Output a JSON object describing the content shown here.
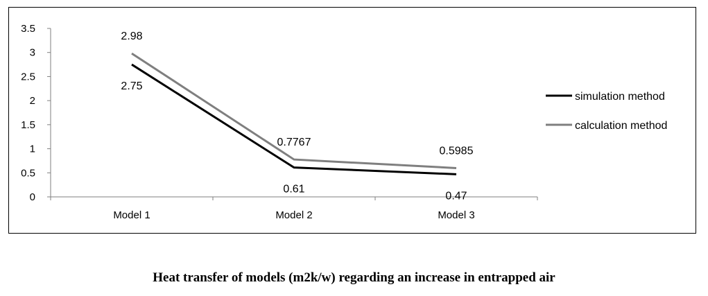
{
  "chart_data": {
    "type": "line",
    "categories": [
      "Model 1",
      "Model 2",
      "Model 3"
    ],
    "series": [
      {
        "name": "simulation method",
        "values": [
          2.75,
          0.61,
          0.47
        ],
        "labels": [
          "2.75",
          "0.61",
          "0.47"
        ],
        "color": "#000000"
      },
      {
        "name": "calculation method",
        "values": [
          2.98,
          0.7767,
          0.5985
        ],
        "labels": [
          "2.98",
          "0.7767",
          "0.5985"
        ],
        "color": "#7f7f7f"
      }
    ],
    "ylim": [
      0,
      3.5
    ],
    "yticks": [
      "0",
      "0.5",
      "1",
      "1.5",
      "2",
      "2.5",
      "3",
      "3.5"
    ],
    "grid": false,
    "legend_position": "right"
  },
  "caption": "Heat transfer of models (m2k/w) regarding an increase in entrapped air"
}
